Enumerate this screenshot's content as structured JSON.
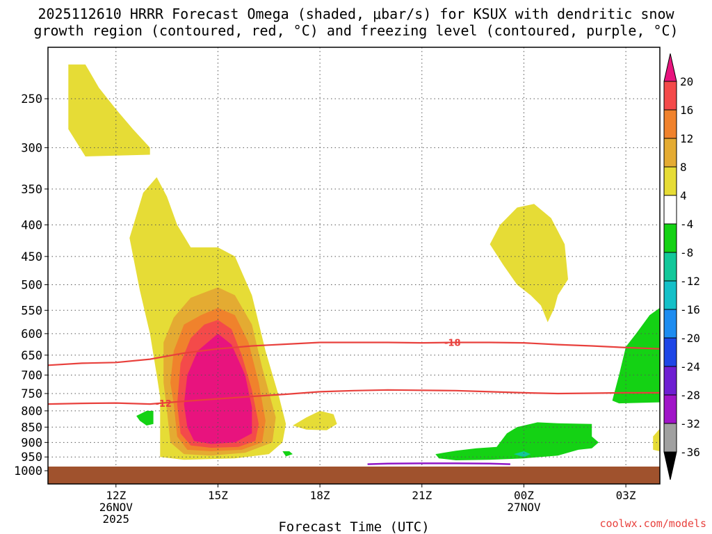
{
  "title": {
    "line1": "2025112610 HRRR Forecast Omega (shaded, μbar/s) for KSUX with dendritic snow",
    "line2": "growth region (contoured, red, °C) and freezing level (contoured, purple, °C)"
  },
  "watermark": "coolwx.com/models",
  "chart_data": {
    "type": "contour-time-height",
    "xlabel": "Forecast Time (UTC)",
    "x_ticks": [
      {
        "hour": 12,
        "label": "12Z",
        "sub1": "26NOV",
        "sub2": "2025"
      },
      {
        "hour": 15,
        "label": "15Z",
        "sub1": "",
        "sub2": ""
      },
      {
        "hour": 18,
        "label": "18Z",
        "sub1": "",
        "sub2": ""
      },
      {
        "hour": 21,
        "label": "21Z",
        "sub1": "",
        "sub2": ""
      },
      {
        "hour": 24,
        "label": "00Z",
        "sub1": "27NOV",
        "sub2": ""
      },
      {
        "hour": 27,
        "label": "03Z",
        "sub1": "",
        "sub2": ""
      }
    ],
    "xlim_hours": [
      10,
      28
    ],
    "y_pressure_ticks": [
      250,
      300,
      350,
      400,
      450,
      500,
      550,
      600,
      650,
      700,
      750,
      800,
      850,
      900,
      950,
      1000
    ],
    "grid": true,
    "colorbar": {
      "labels": [
        "20",
        "16",
        "12",
        "8",
        "4",
        "-4",
        "-8",
        "-12",
        "-16",
        "-20",
        "-24",
        "-28",
        "-32",
        "-36"
      ],
      "colors": {
        "gt20": "#e8137e",
        "16to20": "#f44a4a",
        "12to16": "#f0822c",
        "8to12": "#e4ab32",
        "4to8": "#e6dc36",
        "neutral": "#ffffff",
        "m8tom4": "#14d214",
        "m12tom8": "#12c89a",
        "m16tom12": "#14c0c8",
        "m20tom16": "#1e8cf0",
        "m24tom20": "#1e46e6",
        "m28tom24": "#6e1ed2",
        "m32tom28": "#a014c8",
        "m36tom32": "#a0a0a0",
        "lt36": "#000000"
      }
    },
    "contours": {
      "dendritic": [
        {
          "label": "-12",
          "color": "#e8403c",
          "points": [
            [
              10,
              780
            ],
            [
              11,
              778
            ],
            [
              12,
              777
            ],
            [
              13,
              780
            ],
            [
              14,
              772
            ],
            [
              15,
              765
            ],
            [
              16,
              758
            ],
            [
              17,
              752
            ],
            [
              18,
              745
            ],
            [
              19,
              742
            ],
            [
              20,
              740
            ],
            [
              21,
              741
            ],
            [
              22,
              742
            ],
            [
              23,
              745
            ],
            [
              24,
              748
            ],
            [
              25,
              750
            ],
            [
              26,
              749
            ],
            [
              27,
              748
            ],
            [
              28,
              748
            ]
          ]
        },
        {
          "label": "-18",
          "color": "#e8403c",
          "points": [
            [
              10,
              675
            ],
            [
              11,
              670
            ],
            [
              12,
              668
            ],
            [
              13,
              660
            ],
            [
              14,
              645
            ],
            [
              15,
              635
            ],
            [
              16,
              628
            ],
            [
              17,
              624
            ],
            [
              18,
              620
            ],
            [
              19,
              620
            ],
            [
              20,
              620
            ],
            [
              21,
              621
            ],
            [
              22,
              620
            ],
            [
              23,
              620
            ],
            [
              24,
              621
            ],
            [
              25,
              625
            ],
            [
              26,
              628
            ],
            [
              27,
              632
            ],
            [
              28,
              635
            ]
          ]
        }
      ],
      "freezing_level": {
        "color": "#9018c8",
        "points": [
          [
            19.4,
            976
          ],
          [
            20,
            974
          ],
          [
            21,
            973
          ],
          [
            22,
            973
          ],
          [
            23,
            974
          ],
          [
            23.6,
            976
          ]
        ]
      }
    },
    "omega_regions": [
      {
        "level": "4to8",
        "points": [
          [
            10.6,
            220
          ],
          [
            11.1,
            220
          ],
          [
            11.5,
            240
          ],
          [
            12.0,
            260
          ],
          [
            12.5,
            280
          ],
          [
            13.0,
            300
          ],
          [
            13.0,
            308
          ],
          [
            11.1,
            310
          ],
          [
            10.6,
            280
          ]
        ]
      },
      {
        "level": "4to8",
        "points": [
          [
            12.4,
            420
          ],
          [
            12.8,
            355
          ],
          [
            13.2,
            335
          ],
          [
            13.5,
            360
          ],
          [
            13.8,
            400
          ],
          [
            14.2,
            435
          ],
          [
            15.0,
            435
          ],
          [
            15.5,
            450
          ],
          [
            16.0,
            520
          ],
          [
            16.4,
            640
          ],
          [
            16.8,
            760
          ],
          [
            17.0,
            840
          ],
          [
            16.9,
            900
          ],
          [
            16.5,
            940
          ],
          [
            15.5,
            955
          ],
          [
            14.0,
            960
          ],
          [
            13.3,
            950
          ],
          [
            13.3,
            860
          ],
          [
            13.3,
            760
          ],
          [
            13.2,
            700
          ],
          [
            13.0,
            600
          ],
          [
            12.7,
            510
          ]
        ]
      },
      {
        "level": "8to12",
        "points": [
          [
            13.4,
            620
          ],
          [
            13.7,
            565
          ],
          [
            14.2,
            525
          ],
          [
            15.0,
            505
          ],
          [
            15.5,
            520
          ],
          [
            16.0,
            580
          ],
          [
            16.3,
            680
          ],
          [
            16.7,
            820
          ],
          [
            16.6,
            900
          ],
          [
            15.8,
            935
          ],
          [
            14.8,
            945
          ],
          [
            14.0,
            940
          ],
          [
            13.6,
            900
          ],
          [
            13.5,
            800
          ],
          [
            13.4,
            720
          ]
        ]
      },
      {
        "level": "12to16",
        "points": [
          [
            13.7,
            640
          ],
          [
            14.0,
            580
          ],
          [
            14.5,
            560
          ],
          [
            15.0,
            545
          ],
          [
            15.5,
            560
          ],
          [
            15.9,
            620
          ],
          [
            16.2,
            720
          ],
          [
            16.4,
            830
          ],
          [
            16.3,
            900
          ],
          [
            15.7,
            925
          ],
          [
            14.8,
            930
          ],
          [
            14.1,
            925
          ],
          [
            13.8,
            880
          ],
          [
            13.7,
            780
          ],
          [
            13.6,
            720
          ]
        ]
      },
      {
        "level": "16to20",
        "points": [
          [
            13.9,
            670
          ],
          [
            14.2,
            610
          ],
          [
            14.6,
            580
          ],
          [
            15.0,
            570
          ],
          [
            15.4,
            590
          ],
          [
            15.7,
            650
          ],
          [
            16.0,
            740
          ],
          [
            16.2,
            840
          ],
          [
            16.1,
            895
          ],
          [
            15.6,
            915
          ],
          [
            14.8,
            918
          ],
          [
            14.2,
            910
          ],
          [
            13.9,
            870
          ],
          [
            13.8,
            780
          ]
        ]
      },
      {
        "level": "gt20",
        "points": [
          [
            14.1,
            700
          ],
          [
            14.4,
            640
          ],
          [
            15.0,
            600
          ],
          [
            15.4,
            625
          ],
          [
            15.8,
            700
          ],
          [
            16.0,
            790
          ],
          [
            16.0,
            870
          ],
          [
            15.5,
            900
          ],
          [
            14.8,
            905
          ],
          [
            14.3,
            895
          ],
          [
            14.1,
            850
          ],
          [
            14.0,
            780
          ]
        ]
      },
      {
        "level": "4to8",
        "points": [
          [
            17.2,
            845
          ],
          [
            17.6,
            820
          ],
          [
            18.0,
            800
          ],
          [
            18.4,
            810
          ],
          [
            18.5,
            840
          ],
          [
            18.2,
            860
          ],
          [
            17.6,
            858
          ]
        ]
      },
      {
        "level": "4to8",
        "points": [
          [
            23.0,
            430
          ],
          [
            23.3,
            400
          ],
          [
            23.8,
            375
          ],
          [
            24.3,
            370
          ],
          [
            24.8,
            390
          ],
          [
            25.2,
            430
          ],
          [
            25.3,
            490
          ],
          [
            25.0,
            520
          ],
          [
            24.9,
            545
          ],
          [
            24.7,
            575
          ],
          [
            24.5,
            540
          ],
          [
            24.2,
            520
          ],
          [
            23.8,
            500
          ],
          [
            23.4,
            465
          ]
        ]
      },
      {
        "level": "4to8",
        "points": [
          [
            27.8,
            880
          ],
          [
            28.0,
            855
          ],
          [
            28.0,
            930
          ],
          [
            27.8,
            925
          ]
        ]
      },
      {
        "level": "m8tom4",
        "points": [
          [
            12.6,
            815
          ],
          [
            12.9,
            800
          ],
          [
            13.1,
            800
          ],
          [
            13.1,
            840
          ],
          [
            12.9,
            845
          ],
          [
            12.7,
            830
          ]
        ]
      },
      {
        "level": "m8tom4",
        "points": [
          [
            16.9,
            930
          ],
          [
            17.1,
            930
          ],
          [
            17.2,
            940
          ],
          [
            17.0,
            948
          ]
        ]
      },
      {
        "level": "m8tom4",
        "points": [
          [
            21.4,
            940
          ],
          [
            22.0,
            928
          ],
          [
            22.6,
            920
          ],
          [
            23.2,
            915
          ],
          [
            23.5,
            870
          ],
          [
            23.8,
            850
          ],
          [
            24.4,
            835
          ],
          [
            25.0,
            838
          ],
          [
            26.0,
            840
          ],
          [
            26.0,
            880
          ],
          [
            26.2,
            900
          ],
          [
            26.0,
            920
          ],
          [
            25.6,
            925
          ],
          [
            25.0,
            945
          ],
          [
            24.0,
            955
          ],
          [
            23.0,
            960
          ],
          [
            22.0,
            962
          ],
          [
            21.5,
            955
          ]
        ]
      },
      {
        "level": "m12tom8",
        "points": [
          [
            23.7,
            940
          ],
          [
            24.0,
            930
          ],
          [
            24.2,
            940
          ],
          [
            24.0,
            950
          ]
        ]
      },
      {
        "level": "m8tom4",
        "points": [
          [
            26.6,
            770
          ],
          [
            26.8,
            700
          ],
          [
            27.0,
            630
          ],
          [
            27.3,
            600
          ],
          [
            27.7,
            560
          ],
          [
            28.0,
            545
          ],
          [
            28.0,
            775
          ],
          [
            26.8,
            778
          ]
        ]
      }
    ]
  }
}
